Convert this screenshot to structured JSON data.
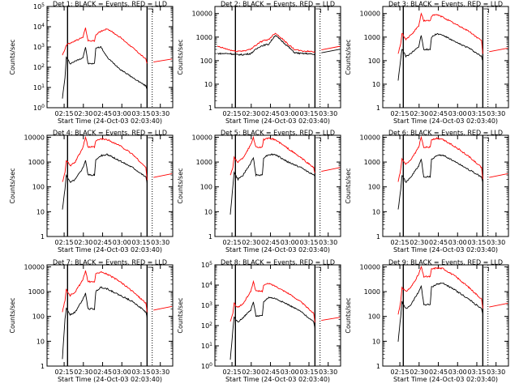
{
  "figure": {
    "ylabel": "Counts/sec",
    "xlabel": "Start Time (24-Oct-03 02:03:40)",
    "x_tick_labels": [
      "02:15",
      "02:30",
      "02:45",
      "03:00",
      "03:15",
      "03:30"
    ],
    "colors": {
      "events": "#000000",
      "lld": "#ff0000",
      "axes": "#000000",
      "background": "#ffffff"
    }
  },
  "chart_data": [
    {
      "type": "line",
      "title": "Det 1: BLACK = Events, RED = LLD",
      "xlabel": "Start Time (24-Oct-03 02:03:40)",
      "ylabel": "Counts/sec",
      "yscale": "log",
      "ylim": [
        1,
        100000
      ],
      "y_tick_labels": [
        "10^0",
        "10^1",
        "10^2",
        "10^3",
        "10^4",
        "10^5"
      ],
      "y_tick_style": "exp",
      "x_minutes_from_start": [
        10,
        12,
        13,
        14,
        16,
        20,
        26,
        28,
        30,
        35,
        36,
        40,
        45,
        55,
        65,
        75,
        76
      ],
      "x_tick_minutes": [
        11.33,
        26.33,
        41.33,
        56.33,
        71.33,
        86.33
      ],
      "gaps_minutes": [
        [
          13,
          14
        ],
        [
          76,
          80
        ]
      ],
      "series": [
        {
          "name": "Events",
          "values": [
            3,
            30,
            300,
            250,
            150,
            200,
            300,
            1000,
            150,
            150,
            900,
            1000,
            300,
            80,
            30,
            12,
            8
          ]
        },
        {
          "name": "LLD",
          "values": [
            400,
            800,
            1200,
            1400,
            1500,
            2000,
            3000,
            9000,
            2000,
            2000,
            4000,
            6000,
            8000,
            3000,
            900,
            250,
            150
          ]
        }
      ]
    },
    {
      "type": "line",
      "title": "Det 2: BLACK = Events, RED = LLD",
      "xlabel": "Start Time (24-Oct-03 02:03:40)",
      "ylabel": "Counts/sec",
      "yscale": "log",
      "ylim": [
        1,
        20000
      ],
      "y_tick_labels": [
        "1",
        "10",
        "100",
        "1000",
        "10000"
      ],
      "y_tick_style": "plain",
      "x_minutes_from_start": [
        0,
        10,
        14,
        20,
        26,
        28,
        30,
        33,
        36,
        40,
        45,
        50,
        55,
        60,
        65,
        70,
        76
      ],
      "x_tick_minutes": [
        11.33,
        26.33,
        41.33,
        56.33,
        71.33,
        86.33
      ],
      "gaps_minutes": [
        [
          13,
          14
        ],
        [
          76,
          80
        ]
      ],
      "series": [
        {
          "name": "Events",
          "values": [
            200,
            200,
            180,
            180,
            200,
            250,
            300,
            400,
            450,
            500,
            1200,
            700,
            400,
            220,
            200,
            200,
            180
          ]
        },
        {
          "name": "LLD",
          "values": [
            400,
            280,
            250,
            260,
            300,
            400,
            450,
            600,
            700,
            800,
            1500,
            900,
            500,
            300,
            260,
            250,
            240
          ]
        }
      ]
    },
    {
      "type": "line",
      "title": "Det 3: BLACK = Events, RED = LLD",
      "xlabel": "Start Time (24-Oct-03 02:03:40)",
      "ylabel": "Counts/sec",
      "yscale": "log",
      "ylim": [
        1,
        20000
      ],
      "y_tick_labels": [
        "1",
        "10",
        "100",
        "1000",
        "10000"
      ],
      "y_tick_style": "plain",
      "x_minutes_from_start": [
        10,
        12,
        13,
        14,
        16,
        20,
        26,
        28,
        30,
        35,
        36,
        40,
        45,
        55,
        65,
        75,
        76
      ],
      "x_tick_minutes": [
        11.33,
        26.33,
        41.33,
        56.33,
        71.33,
        86.33
      ],
      "gaps_minutes": [
        [
          13,
          14
        ],
        [
          76,
          80
        ]
      ],
      "series": [
        {
          "name": "Events",
          "values": [
            15,
            120,
            300,
            250,
            150,
            200,
            400,
            1200,
            300,
            300,
            1000,
            1400,
            1200,
            600,
            350,
            150,
            100
          ]
        },
        {
          "name": "LLD",
          "values": [
            200,
            500,
            1500,
            1200,
            800,
            1200,
            3000,
            10000,
            5000,
            5000,
            8000,
            9000,
            7000,
            3500,
            1800,
            700,
            200
          ]
        }
      ]
    },
    {
      "type": "line",
      "title": "Det 4: BLACK = Events, RED = LLD",
      "xlabel": "Start Time (24-Oct-03 02:03:40)",
      "ylabel": "Counts/sec",
      "yscale": "log",
      "ylim": [
        1,
        12000
      ],
      "y_tick_labels": [
        "1",
        "10",
        "100",
        "1000",
        "10000"
      ],
      "y_tick_style": "plain",
      "x_minutes_from_start": [
        10,
        12,
        13,
        14,
        16,
        20,
        26,
        28,
        30,
        35,
        36,
        40,
        45,
        55,
        65,
        75,
        76
      ],
      "x_tick_minutes": [
        11.33,
        26.33,
        41.33,
        56.33,
        71.33,
        86.33
      ],
      "gaps_minutes": [
        [
          13,
          14
        ],
        [
          76,
          80
        ]
      ],
      "series": [
        {
          "name": "Events",
          "values": [
            12,
            80,
            300,
            250,
            150,
            200,
            600,
            1200,
            300,
            300,
            1200,
            1800,
            2000,
            1100,
            600,
            250,
            150
          ]
        },
        {
          "name": "LLD",
          "values": [
            150,
            400,
            1200,
            1000,
            700,
            1000,
            4000,
            10000,
            4000,
            4000,
            7000,
            8500,
            8000,
            4500,
            2000,
            600,
            200
          ]
        }
      ]
    },
    {
      "type": "line",
      "title": "Det 5: BLACK = Events, RED = LLD",
      "xlabel": "Start Time (24-Oct-03 02:03:40)",
      "ylabel": "Counts/sec",
      "yscale": "log",
      "ylim": [
        1,
        12000
      ],
      "y_tick_labels": [
        "1",
        "10",
        "100",
        "1000",
        "10000"
      ],
      "y_tick_style": "plain",
      "x_minutes_from_start": [
        10,
        12,
        13,
        14,
        16,
        20,
        26,
        28,
        30,
        35,
        36,
        40,
        45,
        55,
        65,
        75,
        76
      ],
      "x_tick_minutes": [
        11.33,
        26.33,
        41.33,
        56.33,
        71.33,
        86.33
      ],
      "gaps_minutes": [
        [
          13,
          14
        ],
        [
          76,
          80
        ]
      ],
      "series": [
        {
          "name": "Events",
          "values": [
            8,
            100,
            400,
            300,
            200,
            300,
            900,
            1500,
            300,
            300,
            1500,
            2000,
            2000,
            1000,
            600,
            300,
            250
          ]
        },
        {
          "name": "LLD",
          "values": [
            300,
            600,
            1500,
            1300,
            1000,
            1500,
            5000,
            10000,
            4000,
            4000,
            8000,
            9000,
            8000,
            3500,
            1500,
            600,
            350
          ]
        }
      ]
    },
    {
      "type": "line",
      "title": "Det 6: BLACK = Events, RED = LLD",
      "xlabel": "Start Time (24-Oct-03 02:03:40)",
      "ylabel": "Counts/sec",
      "yscale": "log",
      "ylim": [
        1,
        12000
      ],
      "y_tick_labels": [
        "1",
        "10",
        "100",
        "1000",
        "10000"
      ],
      "y_tick_style": "plain",
      "x_minutes_from_start": [
        10,
        12,
        13,
        14,
        16,
        20,
        26,
        28,
        30,
        35,
        36,
        40,
        45,
        55,
        65,
        75,
        76
      ],
      "x_tick_minutes": [
        11.33,
        26.33,
        41.33,
        56.33,
        71.33,
        86.33
      ],
      "gaps_minutes": [
        [
          13,
          14
        ],
        [
          76,
          80
        ]
      ],
      "series": [
        {
          "name": "Events",
          "values": [
            12,
            80,
            300,
            250,
            150,
            250,
            700,
            1300,
            250,
            250,
            1300,
            1800,
            1900,
            1000,
            500,
            250,
            150
          ]
        },
        {
          "name": "LLD",
          "values": [
            150,
            500,
            1300,
            1100,
            800,
            1200,
            4000,
            10000,
            4000,
            4000,
            8000,
            9000,
            8000,
            4000,
            1700,
            600,
            200
          ]
        }
      ]
    },
    {
      "type": "line",
      "title": "Det 7: BLACK = Events, RED = LLD",
      "xlabel": "Start Time (24-Oct-03 02:03:40)",
      "ylabel": "Counts/sec",
      "yscale": "log",
      "ylim": [
        1,
        12000
      ],
      "y_tick_labels": [
        "1",
        "10",
        "100",
        "1000",
        "10000"
      ],
      "y_tick_style": "plain",
      "x_minutes_from_start": [
        10,
        12,
        13,
        14,
        16,
        20,
        26,
        28,
        30,
        35,
        36,
        40,
        45,
        55,
        65,
        75,
        76
      ],
      "x_tick_minutes": [
        11.33,
        26.33,
        41.33,
        56.33,
        71.33,
        86.33
      ],
      "gaps_minutes": [
        [
          13,
          14
        ],
        [
          76,
          80
        ]
      ],
      "series": [
        {
          "name": "Events",
          "values": [
            2,
            80,
            200,
            180,
            120,
            150,
            500,
            900,
            200,
            200,
            1000,
            1500,
            1300,
            700,
            400,
            150,
            90
          ]
        },
        {
          "name": "LLD",
          "values": [
            150,
            450,
            1200,
            1000,
            700,
            1000,
            3000,
            7000,
            2500,
            2500,
            5000,
            6500,
            5000,
            2500,
            1000,
            350,
            150
          ]
        }
      ]
    },
    {
      "type": "line",
      "title": "Det 8: BLACK = Events, RED = LLD",
      "xlabel": "Start Time (24-Oct-03 02:03:40)",
      "ylabel": "Counts/sec",
      "yscale": "log",
      "ylim": [
        1,
        100000
      ],
      "y_tick_labels": [
        "10^0",
        "10^1",
        "10^2",
        "10^3",
        "10^4",
        "10^5"
      ],
      "y_tick_style": "exp",
      "x_minutes_from_start": [
        10,
        12,
        13,
        14,
        16,
        20,
        26,
        28,
        30,
        35,
        36,
        40,
        45,
        55,
        65,
        75,
        76
      ],
      "x_tick_minutes": [
        11.33,
        26.33,
        41.33,
        56.33,
        71.33,
        86.33
      ],
      "gaps_minutes": [
        [
          13,
          14
        ],
        [
          76,
          80
        ]
      ],
      "series": [
        {
          "name": "Events",
          "values": [
            2,
            60,
            250,
            200,
            150,
            250,
            600,
            1500,
            300,
            300,
            1500,
            2500,
            2200,
            1100,
            500,
            150,
            80
          ]
        },
        {
          "name": "LLD",
          "values": [
            150,
            400,
            1300,
            1000,
            800,
            1200,
            5000,
            15000,
            5000,
            5000,
            10000,
            12000,
            9000,
            4000,
            1500,
            400,
            150
          ]
        }
      ]
    },
    {
      "type": "line",
      "title": "Det 9: BLACK = Events, RED = LLD",
      "xlabel": "Start Time (24-Oct-03 02:03:40)",
      "ylabel": "Counts/sec",
      "yscale": "log",
      "ylim": [
        1,
        12000
      ],
      "y_tick_labels": [
        "1",
        "10",
        "100",
        "1000",
        "10000"
      ],
      "y_tick_style": "plain",
      "x_minutes_from_start": [
        10,
        12,
        13,
        14,
        16,
        20,
        26,
        28,
        30,
        35,
        36,
        40,
        45,
        55,
        65,
        75,
        76
      ],
      "x_tick_minutes": [
        11.33,
        26.33,
        41.33,
        56.33,
        71.33,
        86.33
      ],
      "gaps_minutes": [
        [
          13,
          14
        ],
        [
          76,
          80
        ]
      ],
      "series": [
        {
          "name": "Events",
          "values": [
            10,
            100,
            400,
            300,
            200,
            300,
            1000,
            1700,
            300,
            300,
            1500,
            2000,
            2200,
            1100,
            500,
            200,
            120
          ]
        },
        {
          "name": "LLD",
          "values": [
            120,
            400,
            1500,
            1300,
            1000,
            1500,
            5000,
            10000,
            4000,
            4000,
            8000,
            9000,
            8500,
            4000,
            1500,
            500,
            200
          ]
        }
      ]
    }
  ]
}
